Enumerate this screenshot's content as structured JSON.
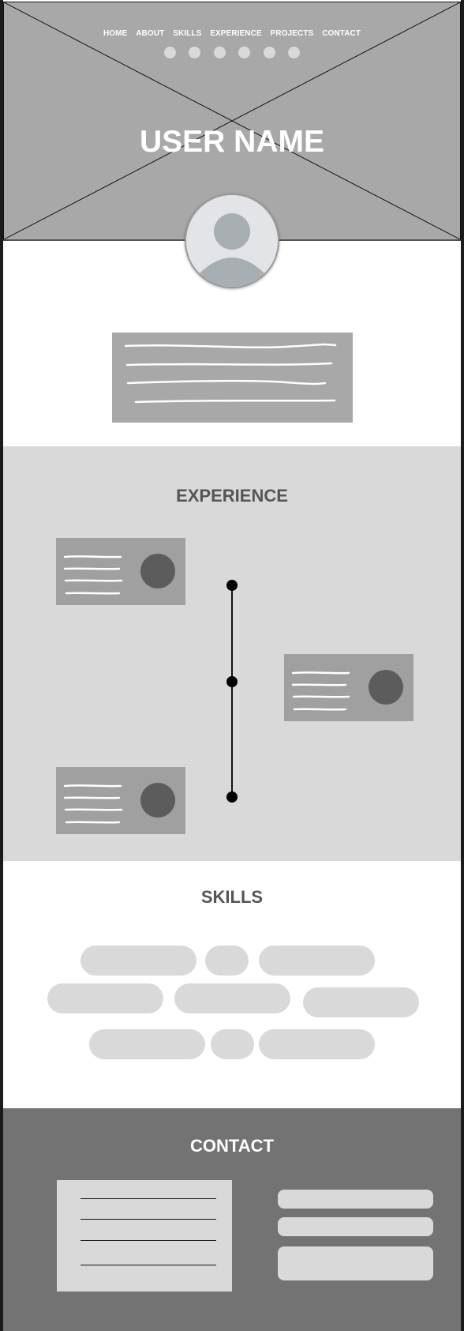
{
  "nav": {
    "items": [
      {
        "label": "HOME"
      },
      {
        "label": "ABOUT"
      },
      {
        "label": "SKILLS"
      },
      {
        "label": "EXPERIENCE"
      },
      {
        "label": "PROJECTS"
      },
      {
        "label": "CONTACT"
      }
    ]
  },
  "hero": {
    "title": "USER NAME"
  },
  "experience": {
    "title": "EXPERIENCE"
  },
  "skills": {
    "title": "SKILLS"
  },
  "contact": {
    "title": "CONTACT"
  },
  "colors": {
    "hero_bg": "#a8a8a8",
    "placeholder_dark": "#a0a0a0",
    "section_light": "#d9d9d9",
    "footer_bg": "#737373",
    "heading_text": "#555555",
    "image_circle": "#5c5c5c"
  },
  "icons": {
    "hero_image": "image-placeholder-cross",
    "avatar": "user-avatar-icon"
  }
}
